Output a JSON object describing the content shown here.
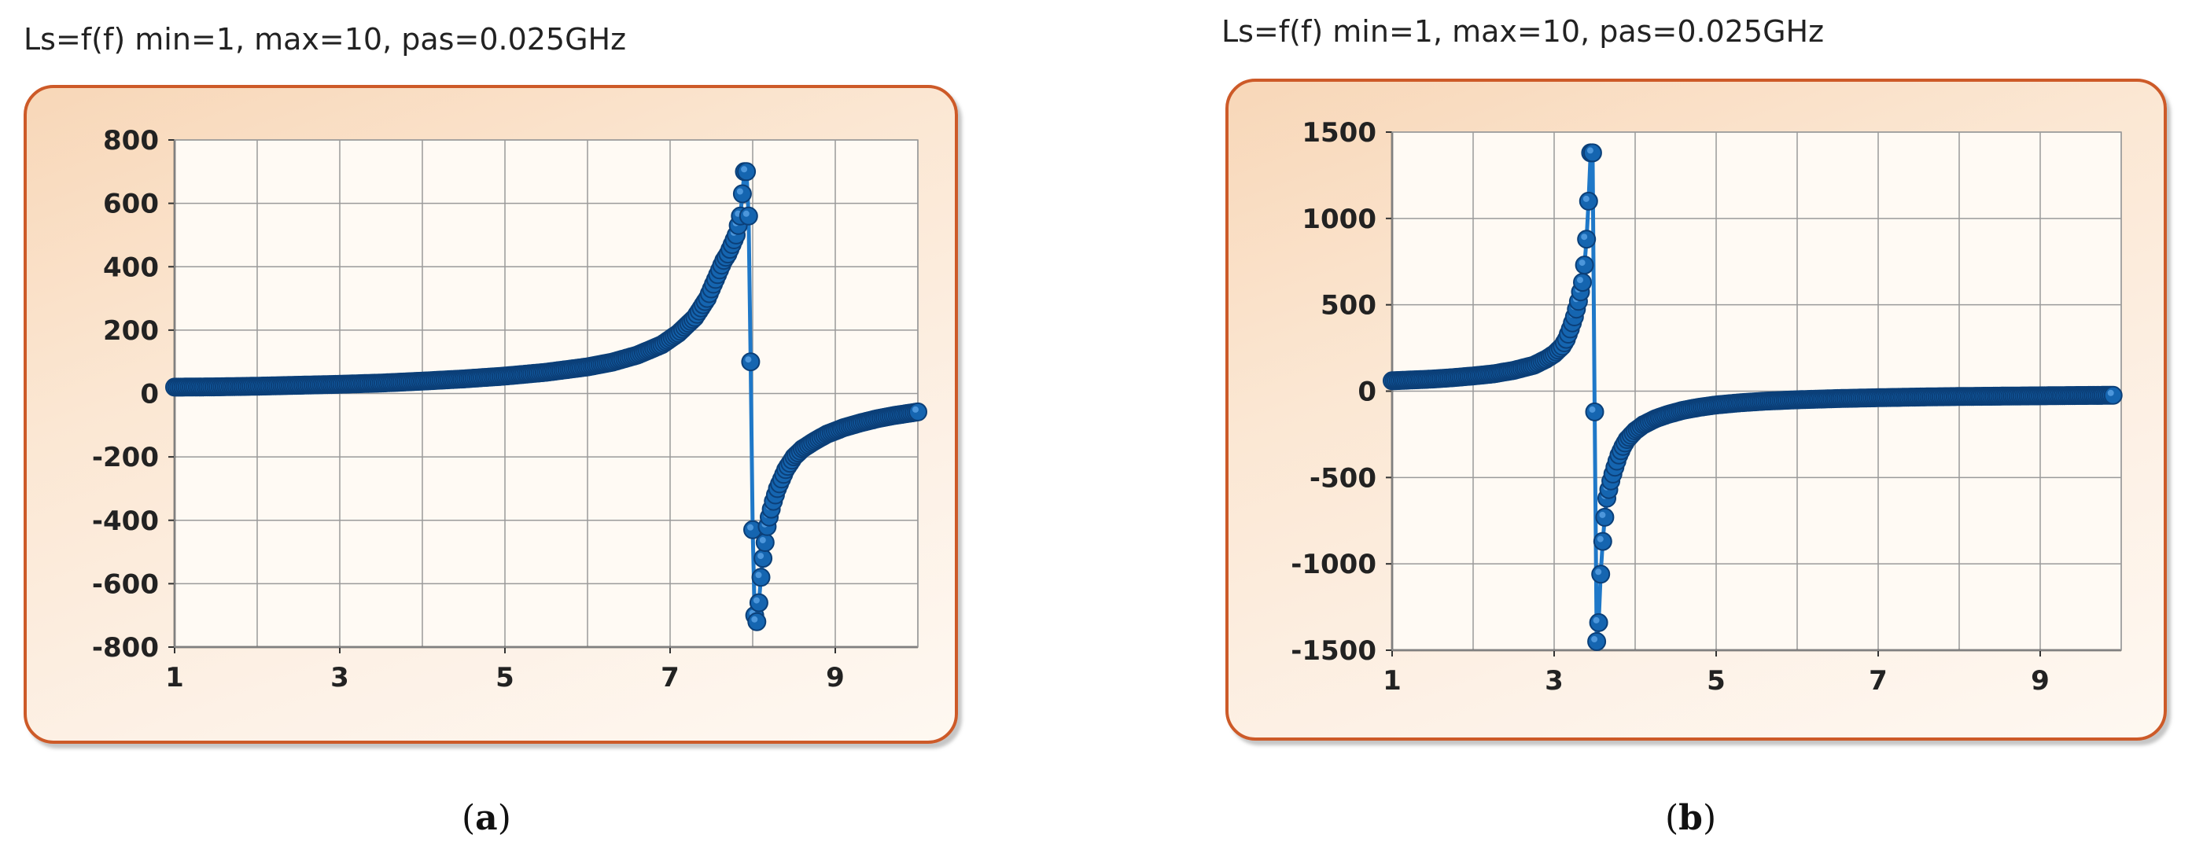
{
  "chart_data": [
    {
      "type": "line",
      "title": "Ls=f(f) min=1, max=10, pas=0.025GHz",
      "caption_label": "a",
      "xlabel": "",
      "ylabel": "",
      "xlim": [
        1,
        10
      ],
      "ylim": [
        -800,
        800
      ],
      "xticks": [
        "1",
        "3",
        "5",
        "7",
        "9"
      ],
      "yticks": [
        "800",
        "600",
        "400",
        "200",
        "0",
        "-200",
        "-400",
        "-600",
        "-800"
      ],
      "grid": true,
      "legend": "none",
      "series_color": "#1f78c8",
      "marker_color": "#1565b0",
      "x": [
        1.0,
        1.5,
        2.0,
        2.5,
        3.0,
        3.5,
        4.0,
        4.5,
        5.0,
        5.5,
        6.0,
        6.3,
        6.6,
        6.9,
        7.1,
        7.3,
        7.45,
        7.55,
        7.65,
        7.7,
        7.75,
        7.8,
        7.85,
        7.875,
        7.9,
        7.925,
        7.95,
        7.975,
        8.0,
        8.025,
        8.05,
        8.075,
        8.1,
        8.125,
        8.15,
        8.175,
        8.2,
        8.25,
        8.3,
        8.35,
        8.4,
        8.5,
        8.6,
        8.75,
        8.9,
        9.1,
        9.3,
        9.5,
        9.7,
        9.9,
        10.0
      ],
      "y": [
        20,
        21,
        23,
        26,
        29,
        33,
        39,
        46,
        55,
        67,
        84,
        99,
        121,
        154,
        190,
        240,
        300,
        360,
        420,
        440,
        470,
        500,
        560,
        630,
        700,
        700,
        560,
        100,
        -430,
        -700,
        -720,
        -660,
        -580,
        -520,
        -470,
        -420,
        -390,
        -340,
        -300,
        -270,
        -240,
        -200,
        -175,
        -150,
        -128,
        -108,
        -93,
        -80,
        -70,
        -62,
        -58
      ]
    },
    {
      "type": "line",
      "title": "Ls=f(f) min=1, max=10, pas=0.025GHz",
      "caption_label": "b",
      "xlabel": "",
      "ylabel": "",
      "xlim": [
        1,
        10
      ],
      "ylim": [
        -1500,
        1500
      ],
      "xticks": [
        "1",
        "3",
        "5",
        "7",
        "9"
      ],
      "yticks": [
        "1500",
        "1000",
        "500",
        "0",
        "-500",
        "-1000",
        "-1500"
      ],
      "grid": true,
      "legend": "none",
      "series_color": "#1f78c8",
      "marker_color": "#1565b0",
      "x": [
        1.0,
        1.25,
        1.5,
        1.75,
        2.0,
        2.25,
        2.5,
        2.75,
        2.9,
        3.0,
        3.1,
        3.15,
        3.2,
        3.25,
        3.3,
        3.35,
        3.375,
        3.4,
        3.425,
        3.45,
        3.475,
        3.5,
        3.525,
        3.55,
        3.575,
        3.6,
        3.625,
        3.65,
        3.7,
        3.75,
        3.8,
        3.85,
        3.9,
        4.0,
        4.1,
        4.25,
        4.4,
        4.6,
        4.8,
        5.0,
        5.3,
        5.6,
        6.0,
        6.5,
        7.0,
        7.5,
        8.0,
        8.5,
        9.0,
        9.5,
        9.9
      ],
      "y": [
        60,
        65,
        70,
        78,
        88,
        100,
        120,
        150,
        185,
        215,
        260,
        300,
        360,
        430,
        520,
        630,
        730,
        880,
        1100,
        1380,
        1380,
        -120,
        -1450,
        -1340,
        -1060,
        -870,
        -730,
        -620,
        -520,
        -440,
        -370,
        -320,
        -280,
        -230,
        -195,
        -160,
        -135,
        -110,
        -93,
        -80,
        -67,
        -58,
        -50,
        -43,
        -38,
        -34,
        -31,
        -29,
        -27,
        -25,
        -24
      ]
    }
  ]
}
